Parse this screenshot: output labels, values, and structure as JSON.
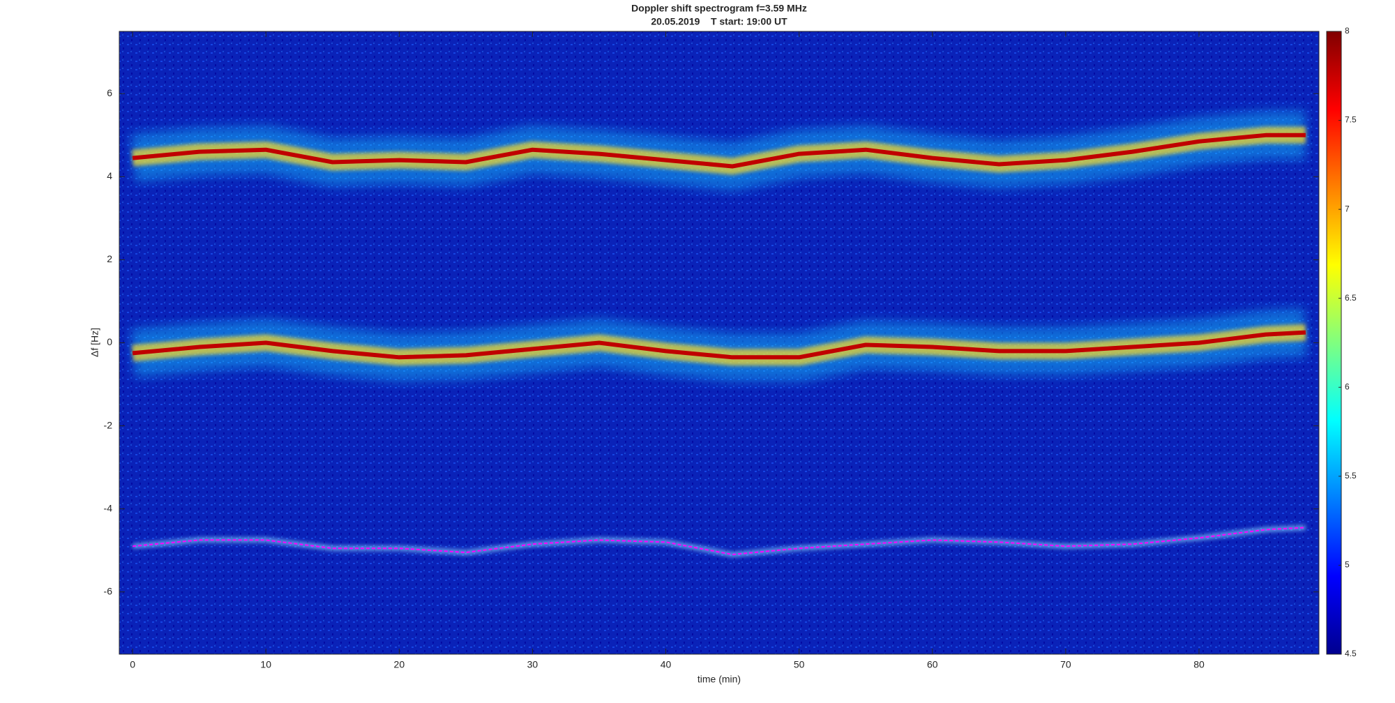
{
  "chart_data": {
    "type": "spectrogram",
    "title": "Doppler shift spectrogram f=3.59 MHz",
    "subtitle": "20.05.2019    T start: 19:00 UT",
    "xlabel": "time (min)",
    "ylabel": "Δf [Hz]",
    "xlim": [
      -1,
      89
    ],
    "xticks": [
      0,
      10,
      20,
      30,
      40,
      50,
      60,
      70,
      80
    ],
    "ylim": [
      -7.5,
      7.5
    ],
    "yticks": [
      -6,
      -4,
      -2,
      0,
      2,
      4,
      6
    ],
    "colormap": "jet",
    "clim": [
      4.5,
      8
    ],
    "cticks": [
      4.5,
      5,
      5.5,
      6,
      6.5,
      7,
      7.5,
      8
    ],
    "x": [
      0,
      5,
      10,
      15,
      20,
      25,
      30,
      35,
      40,
      45,
      50,
      55,
      60,
      65,
      70,
      75,
      80,
      85,
      88
    ],
    "series": [
      {
        "color": "#c00000",
        "values": [
          4.45,
          4.6,
          4.65,
          4.35,
          4.4,
          4.35,
          4.65,
          4.55,
          4.4,
          4.25,
          4.55,
          4.65,
          4.45,
          4.3,
          4.4,
          4.6,
          4.85,
          5.0,
          5.0
        ]
      },
      {
        "color": "#c00000",
        "values": [
          -0.25,
          -0.1,
          0,
          -0.2,
          -0.35,
          -0.3,
          -0.15,
          0,
          -0.2,
          -0.35,
          -0.35,
          -0.05,
          -0.1,
          -0.2,
          -0.2,
          -0.1,
          0,
          0.2,
          0.25
        ]
      },
      {
        "color": "#ff00ff",
        "values": [
          -4.9,
          -4.75,
          -4.75,
          -4.95,
          -4.95,
          -5.05,
          -4.85,
          -4.75,
          -4.8,
          -5.1,
          -4.95,
          -4.85,
          -4.75,
          -4.8,
          -4.9,
          -4.85,
          -4.7,
          -4.5,
          -4.45
        ]
      }
    ]
  }
}
